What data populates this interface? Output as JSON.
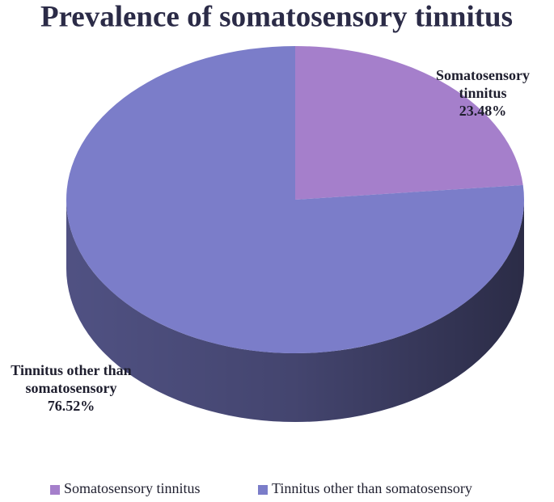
{
  "chart_data": {
    "type": "pie",
    "title": "Prevalence of somatosensory tinnitus",
    "categories": [
      "Somatosensory tinnitus",
      "Tinnitus other than somatosensory"
    ],
    "values": [
      23.48,
      76.52
    ],
    "value_labels": [
      "23.48%",
      "76.52%"
    ],
    "colors": [
      "#a57fcb",
      "#7b7dc9"
    ],
    "legend": "bottom"
  }
}
